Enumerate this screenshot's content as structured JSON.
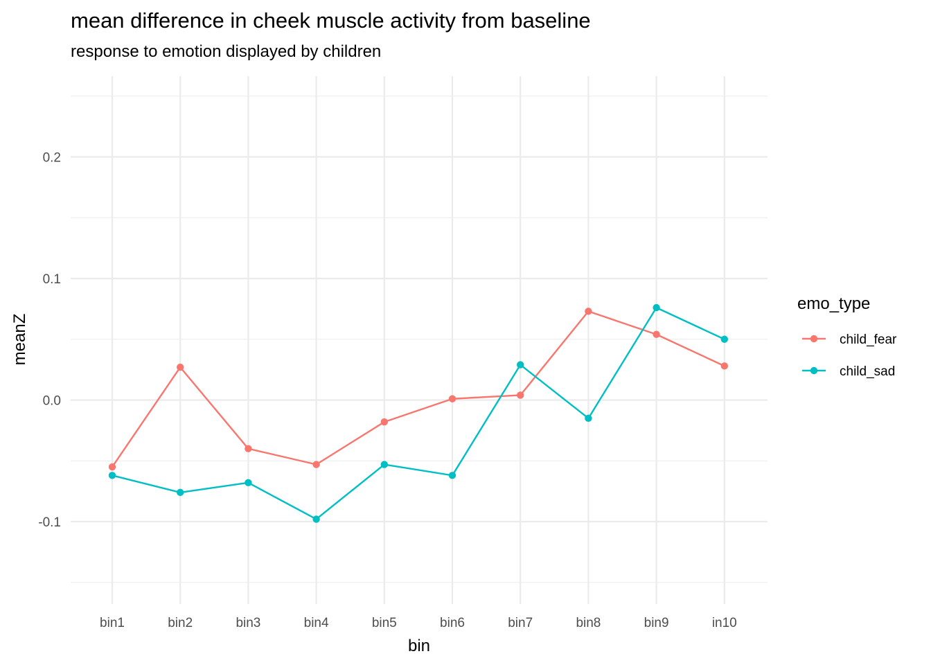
{
  "chart_data": {
    "type": "line",
    "title": "mean difference in cheek muscle activity from baseline",
    "subtitle": "response to emotion displayed by children",
    "xlabel": "bin",
    "ylabel": "meanZ",
    "categories": [
      "bin1",
      "bin2",
      "bin3",
      "bin4",
      "bin5",
      "bin6",
      "bin7",
      "bin8",
      "bin9",
      "in10"
    ],
    "ylim": [
      -0.15,
      0.25
    ],
    "yticks": [
      -0.1,
      0.0,
      0.1,
      0.2
    ],
    "ytick_labels": [
      "-0.1",
      "0.0",
      "0.1",
      "0.2"
    ],
    "grid": true,
    "legend": {
      "title": "emo_type",
      "placement": "right"
    },
    "series": [
      {
        "name": "child_fear",
        "color": "#F8766D",
        "values": [
          -0.055,
          0.027,
          -0.04,
          -0.053,
          -0.018,
          0.001,
          0.004,
          0.073,
          0.054,
          0.028
        ]
      },
      {
        "name": "child_sad",
        "color": "#00BFC4",
        "values": [
          -0.062,
          -0.076,
          -0.068,
          -0.098,
          -0.053,
          -0.062,
          0.029,
          -0.015,
          0.076,
          0.05
        ]
      }
    ]
  }
}
